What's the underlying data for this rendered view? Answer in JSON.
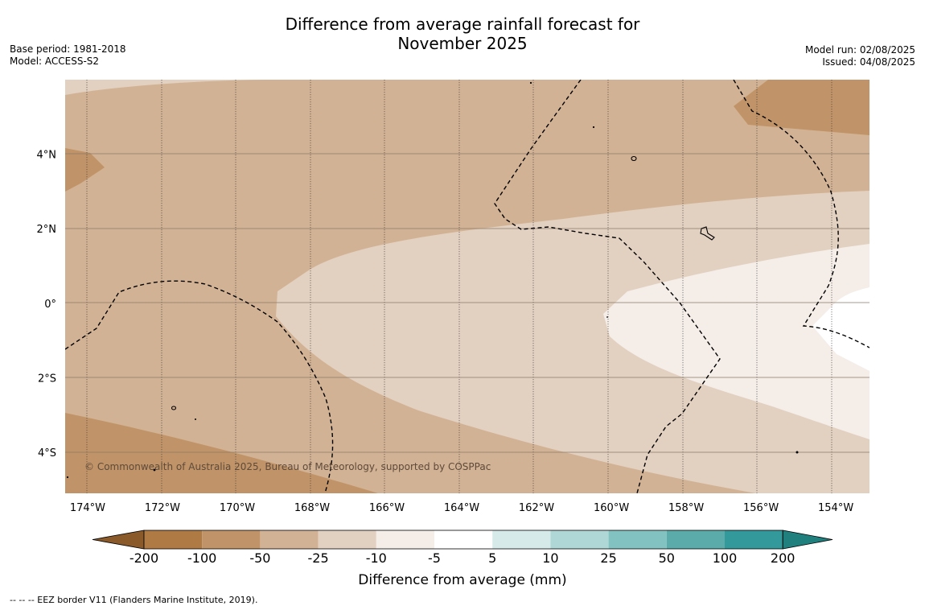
{
  "title_line1": "Difference from average rainfall forecast for",
  "title_line2": "November 2025",
  "base_period": "Base period: 1981-2018",
  "model": "Model: ACCESS-S2",
  "model_run": "Model run: 02/08/2025",
  "issued": "Issued: 04/08/2025",
  "copyright": "© Commonwealth of Australia 2025, Bureau of Meteorology, supported by COSPPac",
  "footnote": "--  --  -- EEZ border V11 (Flanders Marine Institute, 2019).",
  "map": {
    "lon_labels": [
      "174°W",
      "172°W",
      "170°W",
      "168°W",
      "166°W",
      "164°W",
      "162°W",
      "160°W",
      "158°W",
      "156°W",
      "154°W"
    ],
    "lat_labels": [
      "4°N",
      "2°N",
      "0°",
      "2°S",
      "4°S"
    ],
    "lon_range": [
      -174.6,
      -153.1
    ],
    "lat_range": [
      -5.1,
      6.0
    ]
  },
  "colorbar": {
    "label": "Difference from average (mm)",
    "ticks": [
      "-200",
      "-100",
      "-50",
      "-25",
      "-10",
      "-5",
      "5",
      "10",
      "25",
      "50",
      "100",
      "200"
    ],
    "colors": [
      "#8a5a2b",
      "#b07a44",
      "#c09468",
      "#d2b294",
      "#e2d0c0",
      "#f4ede8",
      "#ffffff",
      "#d6ebe9",
      "#aed7d6",
      "#82c2c0",
      "#5aabaa",
      "#33999a",
      "#20807e"
    ]
  }
}
